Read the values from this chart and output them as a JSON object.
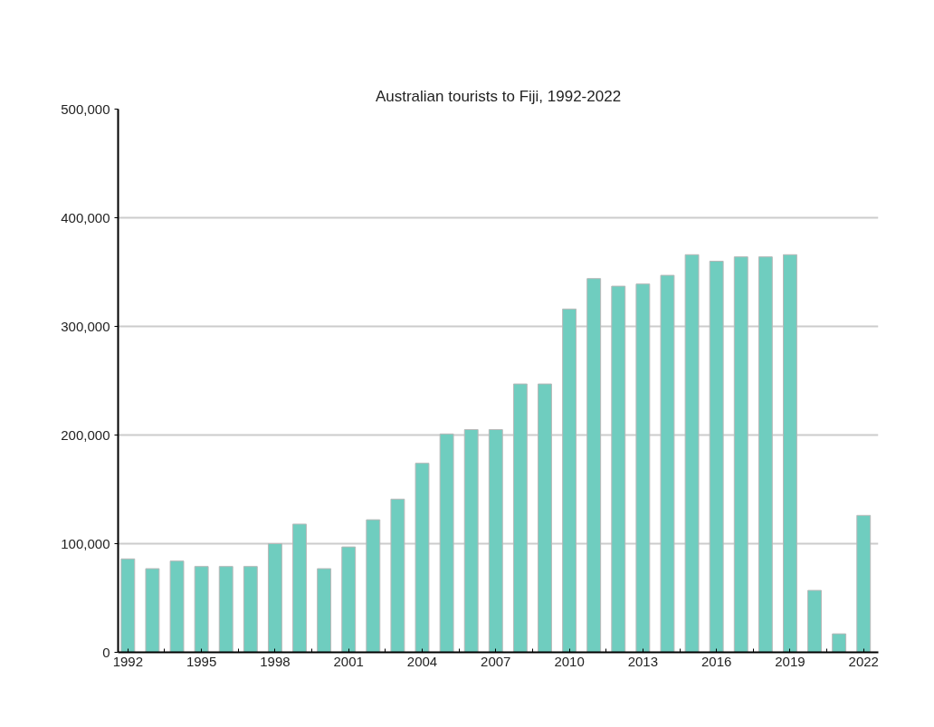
{
  "chart_data": {
    "type": "bar",
    "title": "Australian tourists to Fiji, 1992-2022",
    "x": [
      1992,
      1993,
      1994,
      1995,
      1996,
      1997,
      1998,
      1999,
      2000,
      2001,
      2002,
      2003,
      2004,
      2005,
      2006,
      2007,
      2008,
      2009,
      2010,
      2011,
      2012,
      2013,
      2014,
      2015,
      2016,
      2017,
      2018,
      2019,
      2020,
      2021,
      2022
    ],
    "values": [
      86000,
      77000,
      84000,
      79000,
      79000,
      79000,
      100000,
      118000,
      77000,
      97000,
      122000,
      141000,
      174000,
      201000,
      205000,
      205000,
      247000,
      247000,
      316000,
      344000,
      337000,
      339000,
      347000,
      366000,
      360000,
      364000,
      364000,
      366000,
      57000,
      17000,
      126000
    ],
    "color": "#6fcdbf",
    "xlim": [
      1991.6,
      2022.6
    ],
    "xticks": [
      1992,
      {
        "value": 1993.5,
        "label": null
      },
      1995,
      {
        "value": 1996.5,
        "label": null
      },
      1998,
      {
        "value": 1999.5,
        "label": null
      },
      2001,
      {
        "value": 2002.5,
        "label": null
      },
      2004,
      {
        "value": 2005.5,
        "label": null
      },
      2007,
      {
        "value": 2008.5,
        "label": null
      },
      2010,
      {
        "value": 2011.5,
        "label": null
      },
      2013,
      {
        "value": 2014.5,
        "label": null
      },
      2016,
      {
        "value": 2017.5,
        "label": null
      },
      2019,
      {
        "value": 2020.5,
        "label": null
      },
      2022
    ],
    "ylim": [
      0,
      500000
    ],
    "yticks": [
      0,
      {
        "value": 100000,
        "label": "100,000"
      },
      {
        "value": 200000,
        "label": "200,000"
      },
      {
        "value": 300000,
        "label": "300,000"
      },
      {
        "value": 400000,
        "label": "400,000"
      },
      {
        "value": 500000,
        "label": "500,000"
      }
    ],
    "grid": "y"
  }
}
